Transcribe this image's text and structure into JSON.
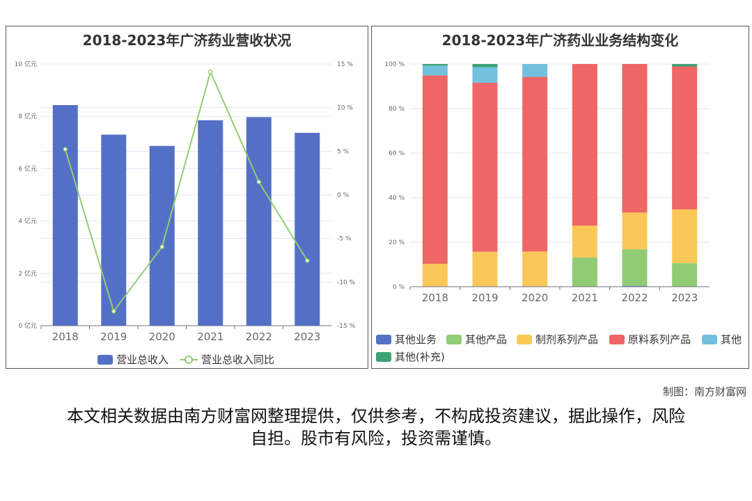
{
  "chart_data": [
    {
      "type": "bar+line",
      "title": "2018-2023年广济药业营收状况",
      "categories": [
        "2018",
        "2019",
        "2020",
        "2021",
        "2022",
        "2023"
      ],
      "series": [
        {
          "name": "营业总收入",
          "type": "bar",
          "axis": "left",
          "values": [
            8.43,
            7.3,
            6.87,
            7.85,
            7.97,
            7.37
          ],
          "color": "#5470c6"
        },
        {
          "name": "营业总收入同比",
          "type": "line",
          "axis": "right",
          "values": [
            5.23,
            -13.35,
            -5.95,
            14.1,
            1.49,
            -7.54
          ],
          "color": "#91cc75"
        }
      ],
      "yleft": {
        "ylim": [
          0,
          10
        ],
        "ticks": [
          "0 亿元",
          "2 亿元",
          "4 亿元",
          "6 亿元",
          "8 亿元",
          "10 亿元"
        ]
      },
      "yright": {
        "ylim": [
          -15,
          15
        ],
        "ticks": [
          "-15 %",
          "-10 %",
          "-5 %",
          "0 %",
          "5 %",
          "10 %",
          "15 %"
        ]
      },
      "grid": true,
      "legend": "bottom"
    },
    {
      "type": "stacked-bar",
      "title": "2018-2023年广济药业业务结构变化",
      "categories": [
        "2018",
        "2019",
        "2020",
        "2021",
        "2022",
        "2023"
      ],
      "series": [
        {
          "name": "其他业务",
          "values": [
            0,
            0,
            0,
            0,
            0.4,
            0
          ],
          "color": "#5470c6"
        },
        {
          "name": "其他产品",
          "values": [
            0,
            0,
            0,
            13.1,
            16.4,
            10.6
          ],
          "color": "#91cc75"
        },
        {
          "name": "制剂系列产品",
          "values": [
            10.3,
            15.7,
            15.8,
            14.3,
            16.5,
            24.1
          ],
          "color": "#fac858"
        },
        {
          "name": "原料系列产品",
          "values": [
            84.6,
            75.9,
            78.4,
            72.6,
            66.7,
            64.2
          ],
          "color": "#ee6666"
        },
        {
          "name": "其他",
          "values": [
            4.4,
            7.0,
            5.8,
            0,
            0,
            0
          ],
          "color": "#73c0de"
        },
        {
          "name": "其他(补充)",
          "values": [
            0.7,
            1.4,
            0,
            0,
            0,
            1.1
          ],
          "color": "#3ba272"
        }
      ],
      "ylim": [
        0,
        100
      ],
      "ticks": [
        "0 %",
        "20 %",
        "40 %",
        "60 %",
        "80 %",
        "100 %"
      ],
      "grid": true,
      "legend": "bottom"
    }
  ],
  "credit": "制图：南方财富网",
  "disclaimer": "本文相关数据由南方财富网整理提供，仅供参考，不构成投资建议，据此操作，风险自担。股市有风险，投资需谨慎。"
}
